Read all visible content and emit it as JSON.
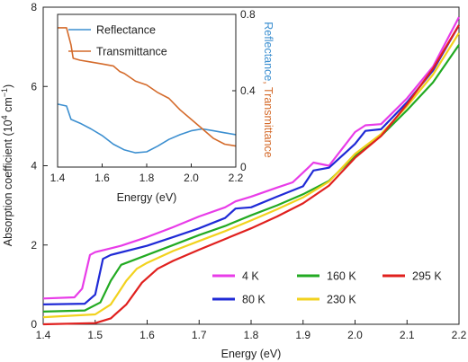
{
  "chart_data": [
    {
      "type": "line",
      "xlabel": "Energy (eV)",
      "ylabel": "Absorption coefficient (10",
      "ylabel_sup": "4",
      "ylabel_unit": " cm",
      "ylabel_sup2": "−1",
      "ylabel_close": ")",
      "xlim": [
        1.4,
        2.2
      ],
      "ylim": [
        0,
        8
      ],
      "xticks": [
        "1.4",
        "1.5",
        "1.6",
        "1.7",
        "1.8",
        "1.9",
        "2.0",
        "2.1",
        "2.2"
      ],
      "yticks": [
        "0",
        "2",
        "4",
        "6",
        "8"
      ],
      "legend_placement": "bottom-right",
      "series": [
        {
          "name": "4 K",
          "color": "#e83ce8",
          "points": [
            [
              1.4,
              0.65
            ],
            [
              1.46,
              0.68
            ],
            [
              1.475,
              0.9
            ],
            [
              1.49,
              1.75
            ],
            [
              1.5,
              1.82
            ],
            [
              1.55,
              1.98
            ],
            [
              1.6,
              2.2
            ],
            [
              1.65,
              2.45
            ],
            [
              1.7,
              2.72
            ],
            [
              1.75,
              2.95
            ],
            [
              1.77,
              3.1
            ],
            [
              1.8,
              3.22
            ],
            [
              1.85,
              3.45
            ],
            [
              1.88,
              3.58
            ],
            [
              1.91,
              3.95
            ],
            [
              1.92,
              4.08
            ],
            [
              1.95,
              4.0
            ],
            [
              2.0,
              4.85
            ],
            [
              2.02,
              5.02
            ],
            [
              2.05,
              5.05
            ],
            [
              2.1,
              5.7
            ],
            [
              2.15,
              6.5
            ],
            [
              2.2,
              7.75
            ]
          ]
        },
        {
          "name": "80 K",
          "color": "#1f2ad6",
          "points": [
            [
              1.4,
              0.5
            ],
            [
              1.48,
              0.52
            ],
            [
              1.5,
              0.75
            ],
            [
              1.515,
              1.65
            ],
            [
              1.53,
              1.75
            ],
            [
              1.6,
              1.98
            ],
            [
              1.65,
              2.2
            ],
            [
              1.7,
              2.42
            ],
            [
              1.75,
              2.68
            ],
            [
              1.77,
              2.92
            ],
            [
              1.8,
              2.95
            ],
            [
              1.85,
              3.22
            ],
            [
              1.9,
              3.48
            ],
            [
              1.92,
              3.88
            ],
            [
              1.95,
              3.95
            ],
            [
              2.0,
              4.55
            ],
            [
              2.02,
              4.88
            ],
            [
              2.05,
              4.92
            ],
            [
              2.1,
              5.6
            ],
            [
              2.15,
              6.4
            ],
            [
              2.2,
              7.55
            ]
          ]
        },
        {
          "name": "160 K",
          "color": "#22aa22",
          "points": [
            [
              1.4,
              0.32
            ],
            [
              1.48,
              0.35
            ],
            [
              1.51,
              0.55
            ],
            [
              1.53,
              1.1
            ],
            [
              1.55,
              1.5
            ],
            [
              1.6,
              1.75
            ],
            [
              1.65,
              2.0
            ],
            [
              1.7,
              2.25
            ],
            [
              1.75,
              2.48
            ],
            [
              1.8,
              2.75
            ],
            [
              1.85,
              3.0
            ],
            [
              1.9,
              3.28
            ],
            [
              1.95,
              3.62
            ],
            [
              2.0,
              4.25
            ],
            [
              2.05,
              4.75
            ],
            [
              2.1,
              5.4
            ],
            [
              2.15,
              6.1
            ],
            [
              2.2,
              7.05
            ]
          ]
        },
        {
          "name": "230 K",
          "color": "#f2d21e",
          "points": [
            [
              1.4,
              0.18
            ],
            [
              1.5,
              0.25
            ],
            [
              1.53,
              0.5
            ],
            [
              1.56,
              1.1
            ],
            [
              1.58,
              1.4
            ],
            [
              1.6,
              1.55
            ],
            [
              1.65,
              1.85
            ],
            [
              1.7,
              2.1
            ],
            [
              1.75,
              2.35
            ],
            [
              1.8,
              2.62
            ],
            [
              1.85,
              2.9
            ],
            [
              1.9,
              3.2
            ],
            [
              1.95,
              3.6
            ],
            [
              2.0,
              4.3
            ],
            [
              2.05,
              4.8
            ],
            [
              2.1,
              5.5
            ],
            [
              2.15,
              6.3
            ],
            [
              2.2,
              7.35
            ]
          ]
        },
        {
          "name": "295 K",
          "color": "#e0201e",
          "points": [
            [
              1.4,
              0.0
            ],
            [
              1.5,
              0.03
            ],
            [
              1.53,
              0.15
            ],
            [
              1.56,
              0.5
            ],
            [
              1.59,
              1.05
            ],
            [
              1.62,
              1.4
            ],
            [
              1.65,
              1.6
            ],
            [
              1.7,
              1.88
            ],
            [
              1.75,
              2.15
            ],
            [
              1.8,
              2.42
            ],
            [
              1.85,
              2.72
            ],
            [
              1.9,
              3.05
            ],
            [
              1.95,
              3.5
            ],
            [
              2.0,
              4.2
            ],
            [
              2.05,
              4.75
            ],
            [
              2.1,
              5.55
            ],
            [
              2.15,
              6.45
            ],
            [
              2.2,
              7.55
            ]
          ]
        }
      ]
    },
    {
      "type": "line",
      "xlabel": "Energy (eV)",
      "ylabel_right_a": "Reflectance",
      "ylabel_right_sep": ", ",
      "ylabel_right_b": "Transmittance",
      "xlim": [
        1.4,
        2.2
      ],
      "ylim": [
        0,
        0.8
      ],
      "xticks": [
        "1.4",
        "1.6",
        "1.8",
        "2.0",
        "2.2"
      ],
      "yticks": [
        "0",
        "0.4",
        "0.8"
      ],
      "legend_placement": "top-left",
      "series": [
        {
          "name": "Reflectance",
          "color": "#3c8fd0",
          "points": [
            [
              1.4,
              0.33
            ],
            [
              1.44,
              0.32
            ],
            [
              1.46,
              0.25
            ],
            [
              1.5,
              0.23
            ],
            [
              1.55,
              0.2
            ],
            [
              1.6,
              0.165
            ],
            [
              1.65,
              0.12
            ],
            [
              1.7,
              0.09
            ],
            [
              1.75,
              0.075
            ],
            [
              1.8,
              0.08
            ],
            [
              1.85,
              0.11
            ],
            [
              1.9,
              0.145
            ],
            [
              1.95,
              0.17
            ],
            [
              2.0,
              0.19
            ],
            [
              2.05,
              0.2
            ],
            [
              2.1,
              0.19
            ],
            [
              2.15,
              0.18
            ],
            [
              2.2,
              0.17
            ]
          ]
        },
        {
          "name": "Transmittance",
          "color": "#d46a2a",
          "points": [
            [
              1.4,
              0.73
            ],
            [
              1.44,
              0.73
            ],
            [
              1.46,
              0.64
            ],
            [
              1.47,
              0.57
            ],
            [
              1.5,
              0.56
            ],
            [
              1.55,
              0.55
            ],
            [
              1.6,
              0.54
            ],
            [
              1.65,
              0.53
            ],
            [
              1.68,
              0.5
            ],
            [
              1.7,
              0.49
            ],
            [
              1.75,
              0.45
            ],
            [
              1.8,
              0.43
            ],
            [
              1.85,
              0.39
            ],
            [
              1.9,
              0.36
            ],
            [
              1.95,
              0.3
            ],
            [
              2.0,
              0.25
            ],
            [
              2.05,
              0.2
            ],
            [
              2.1,
              0.15
            ],
            [
              2.15,
              0.12
            ],
            [
              2.2,
              0.11
            ]
          ]
        }
      ]
    }
  ]
}
